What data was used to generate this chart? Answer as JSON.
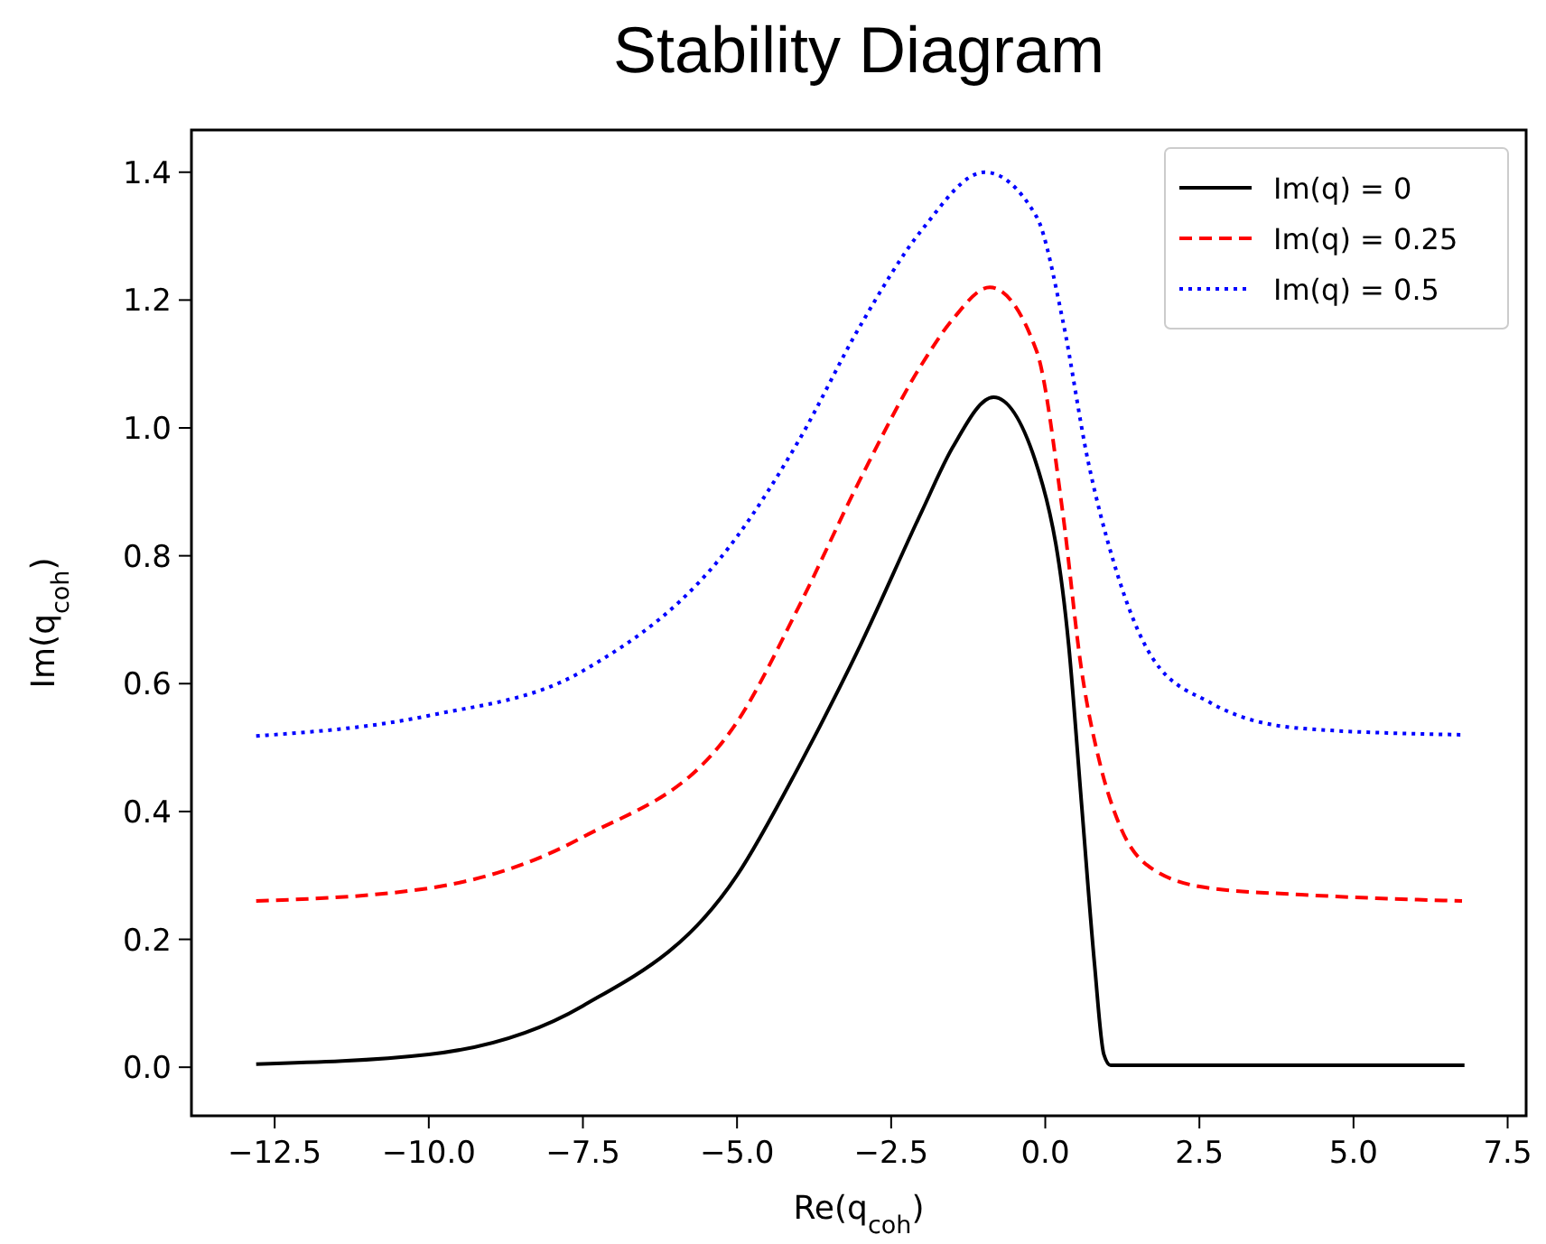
{
  "chart_data": {
    "type": "line",
    "title": "Stability Diagram",
    "xlabel": "Re(q$_{coh}$)",
    "ylabel": "Im(q$_{coh}$)",
    "xlim": [
      -13.85,
      7.8
    ],
    "ylim": [
      -0.076,
      1.466
    ],
    "xticks": [
      {
        "value": -12.5,
        "label": "−12.5"
      },
      {
        "value": -10,
        "label": "−10.0"
      },
      {
        "value": -7.5,
        "label": "−7.5"
      },
      {
        "value": -5,
        "label": "−5.0"
      },
      {
        "value": -2.5,
        "label": "−2.5"
      },
      {
        "value": 0,
        "label": "0.0"
      },
      {
        "value": 2.5,
        "label": "2.5"
      },
      {
        "value": 5,
        "label": "5.0"
      },
      {
        "value": 7.5,
        "label": "7.5"
      }
    ],
    "yticks": [
      {
        "value": 0,
        "label": "0.0"
      },
      0.2,
      0.4,
      0.6,
      0.8,
      {
        "value": 1,
        "label": "1.0"
      },
      1.2,
      1.4
    ],
    "grid": false,
    "legend": "top right",
    "series": [
      {
        "name": "Im(q) = 0",
        "color": "#000000",
        "line_style": "solid",
        "x": [
          -12.8,
          -10,
          -7.5,
          -5,
          -4,
          -3,
          -2,
          -1.5,
          -0.84,
          -0.04,
          0.38,
          0.59,
          0.8,
          0.95,
          1.06,
          3,
          6.8
        ],
        "values": [
          0.005,
          0.02,
          0.096,
          0.3,
          0.47,
          0.66,
          0.87,
          0.97,
          1.048,
          0.91,
          0.66,
          0.41,
          0.16,
          0.02,
          0.003,
          0.003,
          0.003
        ]
      },
      {
        "name": "Im(q) = 0.25",
        "color": "#ff0000",
        "line_style": "dashed",
        "x": [
          -12.8,
          -10,
          -7.5,
          -5,
          -4,
          -3,
          -2,
          -1.5,
          -0.9,
          -0.14,
          0.28,
          0.59,
          0.9,
          1.2,
          1.74,
          2.68,
          4.15,
          6.76
        ],
        "values": [
          0.26,
          0.28,
          0.36,
          0.54,
          0.72,
          0.92,
          1.1,
          1.17,
          1.22,
          1.12,
          0.87,
          0.62,
          0.47,
          0.38,
          0.31,
          0.28,
          0.27,
          0.26
        ]
      },
      {
        "name": "Im(q) = 0.5",
        "color": "#0000ff",
        "line_style": "dotted",
        "x": [
          -12.8,
          -10,
          -7.5,
          -5,
          -4,
          -3,
          -2,
          -0.98,
          -0.14,
          0.28,
          0.69,
          1.11,
          1.74,
          2.68,
          4.15,
          6.76
        ],
        "values": [
          0.518,
          0.55,
          0.62,
          0.83,
          0.98,
          1.16,
          1.31,
          1.4,
          1.33,
          1.17,
          0.95,
          0.79,
          0.64,
          0.57,
          0.53,
          0.52
        ]
      }
    ]
  }
}
